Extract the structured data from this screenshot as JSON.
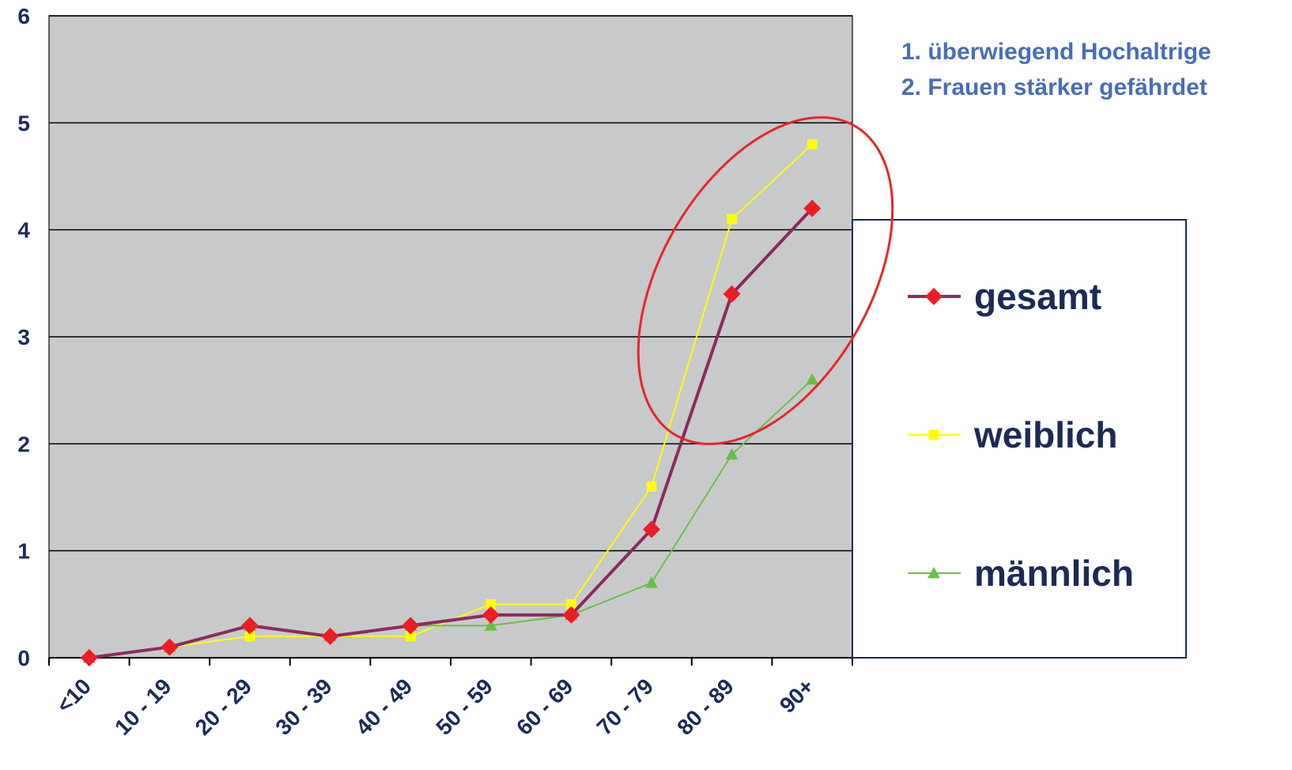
{
  "chart_data": {
    "type": "line",
    "categories": [
      "<10",
      "10 - 19",
      "20 - 29",
      "30 - 39",
      "40 - 49",
      "50 - 59",
      "60 - 69",
      "70 - 79",
      "80 - 89",
      "90+"
    ],
    "ylim": [
      0,
      6
    ],
    "yticks": [
      "0",
      "1",
      "2",
      "3",
      "4",
      "5",
      "6"
    ],
    "grid": true,
    "legend_position": "right",
    "colors": {
      "plot_background": "#c8c9cb",
      "gridline": "#000000",
      "highlight_ellipse": "#e8262b"
    },
    "series": [
      {
        "name": "gesamt",
        "color": "#8b2a5e",
        "marker": "diamond",
        "marker_color": "#ee1c25",
        "values": [
          0,
          0.1,
          0.3,
          0.2,
          0.3,
          0.4,
          0.4,
          1.2,
          3.4,
          4.2
        ]
      },
      {
        "name": "weiblich",
        "color": "#ffff00",
        "marker": "square",
        "marker_color": "#ffff00",
        "values": [
          0,
          0.1,
          0.2,
          0.2,
          0.2,
          0.5,
          0.5,
          1.6,
          4.1,
          4.8
        ]
      },
      {
        "name": "männlich",
        "color": "#6abf45",
        "marker": "triangle",
        "marker_color": "#6abf45",
        "values": [
          0,
          0.1,
          0.3,
          0.2,
          0.3,
          0.3,
          0.4,
          0.7,
          1.9,
          2.6
        ]
      }
    ],
    "annotations": [
      "1. überwiegend Hochaltrige",
      "2. Frauen stärker gefährdet"
    ]
  }
}
